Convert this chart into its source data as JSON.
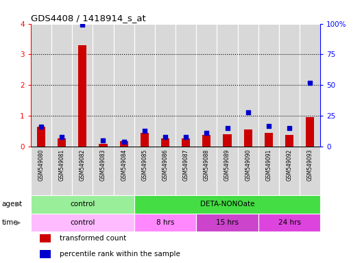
{
  "title": "GDS4408 / 1418914_s_at",
  "samples": [
    "GSM549080",
    "GSM549081",
    "GSM549082",
    "GSM549083",
    "GSM549084",
    "GSM549085",
    "GSM549086",
    "GSM549087",
    "GSM549088",
    "GSM549089",
    "GSM549090",
    "GSM549091",
    "GSM549092",
    "GSM549093"
  ],
  "transformed_count": [
    0.65,
    0.27,
    3.3,
    0.1,
    0.18,
    0.45,
    0.27,
    0.28,
    0.38,
    0.4,
    0.55,
    0.45,
    0.38,
    0.95
  ],
  "percentile_rank": [
    16,
    8,
    99,
    5,
    4,
    13,
    8,
    8,
    11,
    15,
    28,
    17,
    15,
    52
  ],
  "ylim_left": [
    0,
    4
  ],
  "ylim_right": [
    0,
    100
  ],
  "yticks_left": [
    0,
    1,
    2,
    3,
    4
  ],
  "yticks_right": [
    0,
    25,
    50,
    75,
    100
  ],
  "yticklabels_right": [
    "0",
    "25",
    "50",
    "75",
    "100%"
  ],
  "bar_color": "#cc0000",
  "dot_color": "#0000cc",
  "agent_groups": [
    {
      "label": "control",
      "start": 0,
      "end": 5,
      "color": "#99ee99"
    },
    {
      "label": "DETA-NONOate",
      "start": 5,
      "end": 14,
      "color": "#44dd44"
    }
  ],
  "time_groups": [
    {
      "label": "control",
      "start": 0,
      "end": 5,
      "color": "#ffbbff"
    },
    {
      "label": "8 hrs",
      "start": 5,
      "end": 8,
      "color": "#ff88ff"
    },
    {
      "label": "15 hrs",
      "start": 8,
      "end": 11,
      "color": "#cc44cc"
    },
    {
      "label": "24 hrs",
      "start": 11,
      "end": 14,
      "color": "#dd44dd"
    }
  ],
  "legend_items": [
    {
      "label": "transformed count",
      "color": "#cc0000"
    },
    {
      "label": "percentile rank within the sample",
      "color": "#0000cc"
    }
  ],
  "col_bg_color": "#d8d8d8",
  "plot_bg_color": "#ffffff"
}
